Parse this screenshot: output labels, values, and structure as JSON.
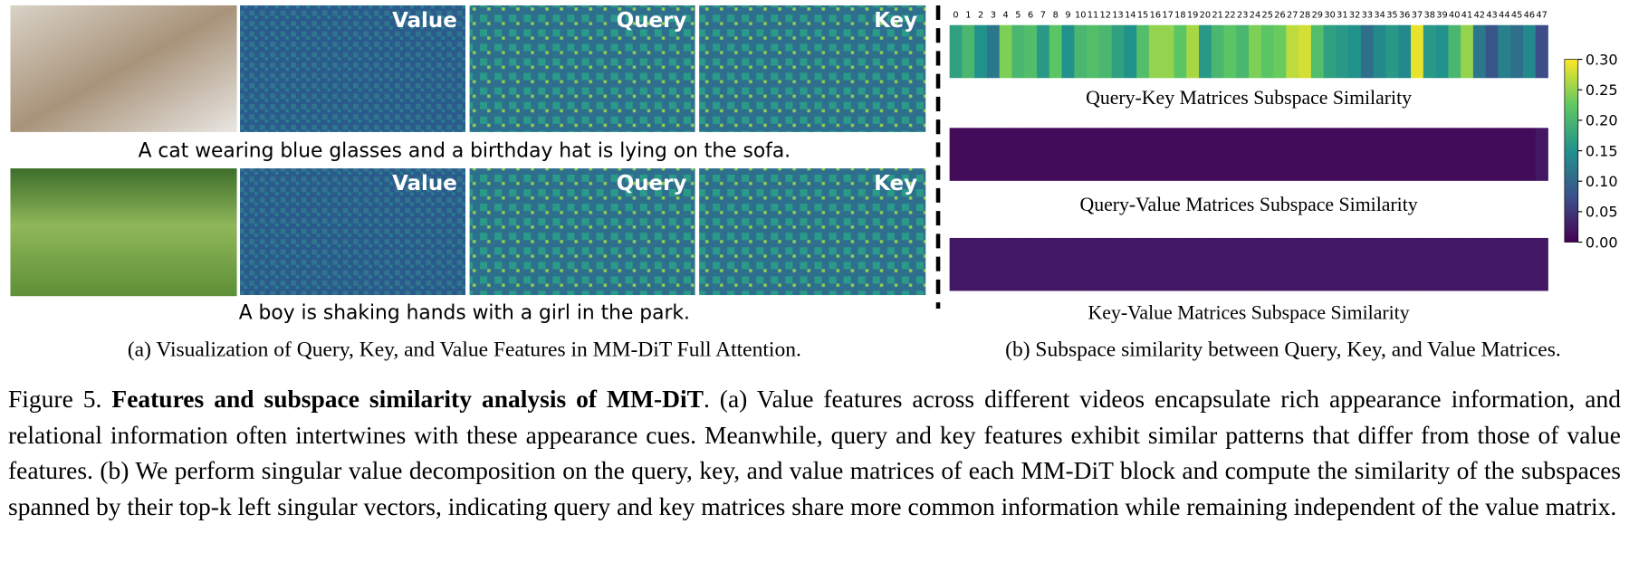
{
  "panel_a": {
    "rows": [
      {
        "labels": [
          "Value",
          "Query",
          "Key"
        ],
        "caption": "A cat wearing blue glasses and a birthday hat is lying on the sofa."
      },
      {
        "labels": [
          "Value",
          "Query",
          "Key"
        ],
        "caption": "A boy is shaking hands with a girl in the park."
      }
    ],
    "subcaption": "(a) Visualization of Query, Key, and Value Features in MM-DiT Full Attention."
  },
  "chart_data": {
    "type": "heatmap",
    "colormap": "viridis",
    "categories": [
      0,
      1,
      2,
      3,
      4,
      5,
      6,
      7,
      8,
      9,
      10,
      11,
      12,
      13,
      14,
      15,
      16,
      17,
      18,
      19,
      20,
      21,
      22,
      23,
      24,
      25,
      26,
      27,
      28,
      29,
      30,
      31,
      32,
      33,
      34,
      35,
      36,
      37,
      38,
      39,
      40,
      41,
      42,
      43,
      44,
      45,
      46,
      47
    ],
    "series": [
      {
        "name": "Query-Key Matrices Subspace Similarity",
        "values": [
          0.17,
          0.2,
          0.15,
          0.12,
          0.24,
          0.2,
          0.21,
          0.16,
          0.22,
          0.15,
          0.2,
          0.21,
          0.2,
          0.17,
          0.15,
          0.21,
          0.25,
          0.25,
          0.22,
          0.26,
          0.16,
          0.2,
          0.22,
          0.2,
          0.24,
          0.22,
          0.23,
          0.27,
          0.28,
          0.21,
          0.17,
          0.16,
          0.15,
          0.11,
          0.14,
          0.16,
          0.14,
          0.29,
          0.16,
          0.15,
          0.2,
          0.25,
          0.12,
          0.08,
          0.13,
          0.11,
          0.14,
          0.07
        ]
      },
      {
        "name": "Query-Value Matrices Subspace Similarity",
        "values": [
          0.01,
          0.01,
          0.01,
          0.01,
          0.01,
          0.01,
          0.01,
          0.01,
          0.01,
          0.01,
          0.01,
          0.01,
          0.01,
          0.01,
          0.01,
          0.01,
          0.01,
          0.01,
          0.01,
          0.01,
          0.01,
          0.01,
          0.01,
          0.01,
          0.01,
          0.01,
          0.01,
          0.01,
          0.01,
          0.01,
          0.01,
          0.01,
          0.01,
          0.01,
          0.01,
          0.01,
          0.01,
          0.01,
          0.01,
          0.01,
          0.01,
          0.01,
          0.01,
          0.01,
          0.01,
          0.01,
          0.01,
          0.02
        ]
      },
      {
        "name": "Key-Value Matrices Subspace Similarity",
        "values": [
          0.02,
          0.02,
          0.02,
          0.02,
          0.02,
          0.02,
          0.02,
          0.02,
          0.02,
          0.02,
          0.02,
          0.02,
          0.02,
          0.02,
          0.02,
          0.02,
          0.02,
          0.02,
          0.02,
          0.02,
          0.02,
          0.02,
          0.02,
          0.02,
          0.02,
          0.02,
          0.02,
          0.02,
          0.02,
          0.02,
          0.02,
          0.02,
          0.02,
          0.02,
          0.02,
          0.02,
          0.02,
          0.02,
          0.02,
          0.02,
          0.02,
          0.02,
          0.02,
          0.02,
          0.02,
          0.02,
          0.02,
          0.02
        ]
      }
    ],
    "clim": [
      0,
      0.3
    ],
    "cticks": [
      {
        "value": 0,
        "label": "0.00"
      },
      {
        "value": 0.05,
        "label": "0.05"
      },
      {
        "value": 0.1,
        "label": "0.10"
      },
      {
        "value": 0.15,
        "label": "0.15"
      },
      {
        "value": 0.2,
        "label": "0.20"
      },
      {
        "value": 0.25,
        "label": "0.25"
      },
      {
        "value": 0.3,
        "label": "0.30"
      }
    ],
    "subcaption": "(b) Subspace similarity between Query, Key, and Value Matrices."
  },
  "figure_caption": {
    "label": "Figure 5.",
    "bold": "Features and subspace similarity analysis of MM-DiT",
    "text": ". (a) Value features across different videos encapsulate rich appearance information, and relational information often intertwines with these appearance cues. Meanwhile, query and key features exhibit similar patterns that differ from those of value features. (b) We perform singular value decomposition on the query, key, and value matrices of each MM-DiT block and compute the similarity of the subspaces spanned by their top-k left singular vectors, indicating query and key matrices share more common information while remaining independent of the value matrix."
  }
}
